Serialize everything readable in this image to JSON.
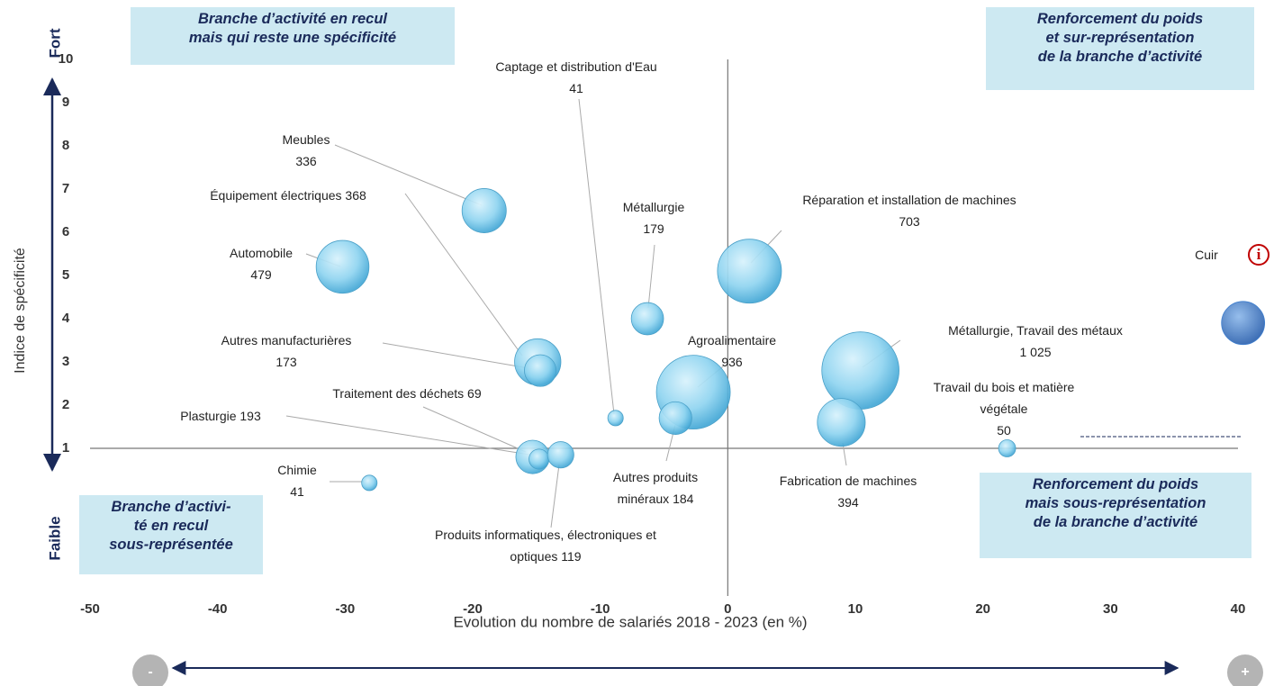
{
  "chart_data": {
    "type": "bubble",
    "x_label": "Evolution du nombre de salariés 2018 - 2023 (en %)",
    "y_label": "Indice de spécificité",
    "xlim": [
      -50,
      40
    ],
    "xticks": [
      -50,
      -40,
      -30,
      -20,
      -10,
      0,
      10,
      20,
      30,
      40
    ],
    "ylim": [
      -2.5,
      10
    ],
    "yticks": [
      1,
      2,
      3,
      4,
      5,
      6,
      7,
      8,
      9,
      10
    ],
    "axis_cross": {
      "x": 0,
      "y": 1
    },
    "color": "#7fcdee",
    "points": [
      {
        "name": "Meubles",
        "x": -19.1,
        "y": 6.5,
        "size": 336
      },
      {
        "name": "Équipement électriques",
        "x": -14.9,
        "y": 3.0,
        "size": 368
      },
      {
        "name": "Automobile",
        "x": -30.2,
        "y": 5.2,
        "size": 479
      },
      {
        "name": "Autres manufacturières",
        "x": -14.7,
        "y": 2.8,
        "size": 173
      },
      {
        "name": "Captage et distribution d'Eau",
        "x": -8.8,
        "y": 1.7,
        "size": 41
      },
      {
        "name": "Métallurgie",
        "x": -6.3,
        "y": 4.0,
        "size": 179
      },
      {
        "name": "Réparation et installation de machines",
        "x": 1.7,
        "y": 5.1,
        "size": 703
      },
      {
        "name": "Agroalimentaire",
        "x": -2.7,
        "y": 2.3,
        "size": 936
      },
      {
        "name": "Autres produits minéraux",
        "x": -4.1,
        "y": 1.7,
        "size": 184
      },
      {
        "name": "Métallurgie, Travail des métaux",
        "x": 10.4,
        "y": 2.8,
        "size": 1025,
        "size_label": "1 025"
      },
      {
        "name": "Fabrication de machines",
        "x": 8.9,
        "y": 1.6,
        "size": 394
      },
      {
        "name": "Travail du bois et matière végétale",
        "x": 21.9,
        "y": 1.0,
        "size": 50
      },
      {
        "name": "Cuir",
        "x": 40.4,
        "y": 3.9,
        "size": 320,
        "color": "#3f7fcf"
      },
      {
        "name": "Plasturgie",
        "x": -15.3,
        "y": 0.8,
        "size": 193
      },
      {
        "name": "Traitement des déchets",
        "x": -14.8,
        "y": 0.75,
        "size": 69
      },
      {
        "name": "Produits informatiques, électroniques et optiques",
        "x": -13.1,
        "y": 0.85,
        "size": 119
      },
      {
        "name": "Chimie",
        "x": -28.1,
        "y": 0.2,
        "size": 41
      }
    ],
    "quadrants": [
      {
        "lines": [
          "Branche d’activité en recul",
          "mais qui reste une spécificité"
        ]
      },
      {
        "lines": [
          "Renforcement du poids",
          "et sur-représentation",
          "de la branche d’activité"
        ]
      },
      {
        "lines": [
          "Branche d’activi-",
          "té en recul",
          "sous-représentée"
        ]
      },
      {
        "lines": [
          "Renforcement du poids",
          "mais sous-représentation",
          "de la branche d’activité"
        ]
      }
    ],
    "y_axis_ends": [
      "Fort",
      "Faible"
    ],
    "x_axis_ends": [
      "-",
      "+"
    ],
    "info_icon": "i"
  }
}
